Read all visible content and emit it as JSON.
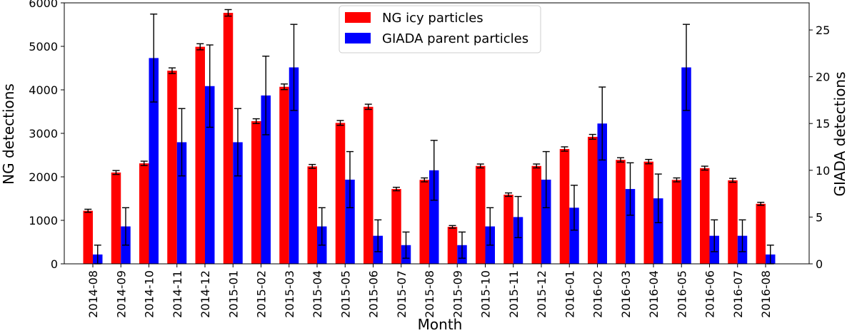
{
  "chart_data": {
    "type": "bar",
    "xlabel": "Month",
    "ylabel_left": "NG detections",
    "ylabel_right": "GIADA detections",
    "ylim_left": [
      0,
      6000
    ],
    "ylim_right": [
      0,
      27.9
    ],
    "yticks_left": [
      0,
      1000,
      2000,
      3000,
      4000,
      5000,
      6000
    ],
    "yticks_right": [
      0,
      5,
      10,
      15,
      20,
      25
    ],
    "categories": [
      "2014-08",
      "2014-09",
      "2014-10",
      "2014-11",
      "2014-12",
      "2015-01",
      "2015-02",
      "2015-03",
      "2015-04",
      "2015-05",
      "2015-06",
      "2015-07",
      "2015-08",
      "2015-09",
      "2015-10",
      "2015-11",
      "2015-12",
      "2016-01",
      "2016-02",
      "2016-03",
      "2016-04",
      "2016-05",
      "2016-06",
      "2016-07",
      "2016-08"
    ],
    "series": [
      {
        "name": "NG icy particles",
        "axis": "left",
        "color": "#ff0000",
        "values": [
          1220,
          2100,
          2310,
          4440,
          4990,
          5770,
          3280,
          4070,
          2240,
          3240,
          3610,
          1720,
          1930,
          850,
          2250,
          1590,
          2250,
          2640,
          2920,
          2390,
          2350,
          1930,
          2200,
          1920,
          1380
        ],
        "errors": [
          35,
          45,
          50,
          65,
          70,
          75,
          55,
          65,
          45,
          55,
          60,
          40,
          45,
          30,
          45,
          40,
          45,
          50,
          55,
          50,
          50,
          45,
          45,
          45,
          35
        ]
      },
      {
        "name": "GIADA parent particles",
        "axis": "right",
        "color": "#0000ff",
        "values": [
          1,
          4,
          22,
          13,
          19,
          13,
          18,
          21,
          4,
          9,
          3,
          2,
          10,
          2,
          4,
          5,
          9,
          6,
          15,
          8,
          7,
          21,
          3,
          3,
          1
        ],
        "errors": [
          1,
          2,
          4.7,
          3.6,
          4.4,
          3.6,
          4.2,
          4.6,
          2,
          3,
          1.7,
          1.4,
          3.2,
          1.4,
          2,
          2.2,
          3,
          2.4,
          3.9,
          2.8,
          2.6,
          4.6,
          1.7,
          1.7,
          1
        ]
      }
    ],
    "legend_position": "top-center"
  }
}
